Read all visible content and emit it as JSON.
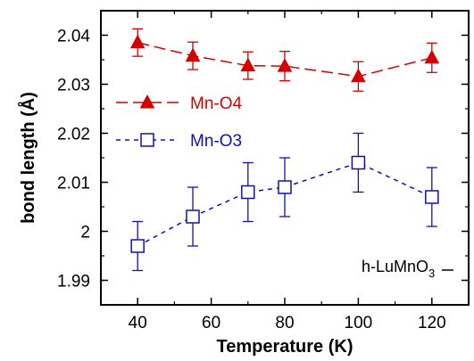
{
  "chart_data": {
    "type": "scatter",
    "xlabel": "Temperature (K)",
    "ylabel": "bond length (Å)",
    "xlim": [
      30,
      130
    ],
    "ylim": [
      1.985,
      2.045
    ],
    "x_ticks": [
      "40",
      "60",
      "80",
      "100",
      "120"
    ],
    "y_ticks": [
      "1.99",
      "2",
      "2.01",
      "2.02",
      "2.03",
      "2.04"
    ],
    "grid": false,
    "legend_position": "center-left",
    "annotation": {
      "main": "h-LuMnO",
      "sub": "3"
    },
    "series": [
      {
        "name": "Mn-O4",
        "color": "#d40000",
        "marker": "filled-triangle",
        "line": "long-dash",
        "points": [
          {
            "x": 40,
            "y": 2.0385,
            "err": 0.0028
          },
          {
            "x": 55,
            "y": 2.0358,
            "err": 0.0028
          },
          {
            "x": 70,
            "y": 2.0338,
            "err": 0.0028
          },
          {
            "x": 80,
            "y": 2.0337,
            "err": 0.003
          },
          {
            "x": 100,
            "y": 2.0316,
            "err": 0.003
          },
          {
            "x": 120,
            "y": 2.0354,
            "err": 0.003
          }
        ]
      },
      {
        "name": "Mn-O3",
        "color": "#1010b0",
        "marker": "open-square",
        "line": "short-dash",
        "points": [
          {
            "x": 40,
            "y": 1.997,
            "err": 0.005
          },
          {
            "x": 55,
            "y": 2.003,
            "err": 0.006
          },
          {
            "x": 70,
            "y": 2.008,
            "err": 0.006
          },
          {
            "x": 80,
            "y": 2.009,
            "err": 0.006
          },
          {
            "x": 100,
            "y": 2.014,
            "err": 0.006
          },
          {
            "x": 120,
            "y": 2.007,
            "err": 0.006
          }
        ]
      }
    ]
  }
}
